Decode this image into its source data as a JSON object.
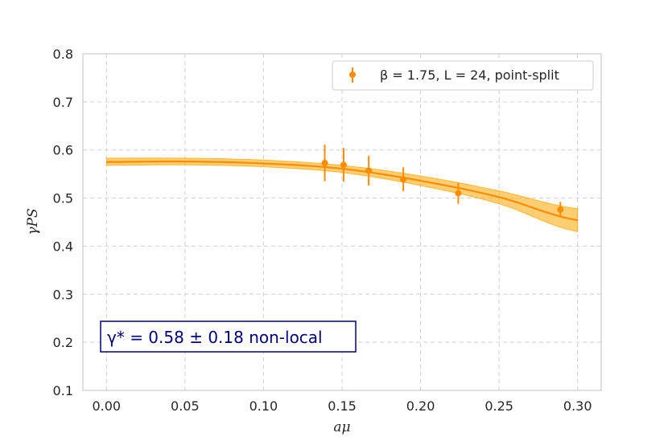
{
  "colors": {
    "series": "#ff8c00",
    "band": "#ffa500",
    "grid": "#d0d0d0",
    "annotation": "#00007f"
  },
  "chart_data": {
    "type": "scatter",
    "xlabel": "aμ",
    "ylabel": "γPS",
    "xlim": [
      -0.015,
      0.315
    ],
    "ylim": [
      0.1,
      0.8
    ],
    "x_ticks": [
      0.0,
      0.05,
      0.1,
      0.15,
      0.2,
      0.25,
      0.3
    ],
    "x_tick_labels": [
      "0.00",
      "0.05",
      "0.10",
      "0.15",
      "0.20",
      "0.25",
      "0.30"
    ],
    "y_ticks": [
      0.1,
      0.2,
      0.3,
      0.4,
      0.5,
      0.6,
      0.7,
      0.8
    ],
    "y_tick_labels": [
      "0.1",
      "0.2",
      "0.3",
      "0.4",
      "0.5",
      "0.6",
      "0.7",
      "0.8"
    ],
    "grid": true,
    "legend": {
      "placement": "top-right",
      "entries": [
        "β = 1.75, L = 24, point-split"
      ]
    },
    "series": [
      {
        "name": "β = 1.75, L = 24, point-split",
        "points": [
          {
            "x": 0.139,
            "y": 0.573,
            "yerr": 0.038
          },
          {
            "x": 0.151,
            "y": 0.569,
            "yerr": 0.035
          },
          {
            "x": 0.167,
            "y": 0.557,
            "yerr": 0.031
          },
          {
            "x": 0.189,
            "y": 0.539,
            "yerr": 0.025
          },
          {
            "x": 0.224,
            "y": 0.51,
            "yerr": 0.022
          },
          {
            "x": 0.289,
            "y": 0.476,
            "yerr": 0.016
          }
        ]
      }
    ],
    "fit": {
      "x": [
        0.0,
        0.05,
        0.1,
        0.15,
        0.2,
        0.25,
        0.3
      ],
      "y": [
        0.575,
        0.576,
        0.572,
        0.561,
        0.536,
        0.502,
        0.454
      ],
      "lower": [
        0.568,
        0.569,
        0.565,
        0.553,
        0.526,
        0.488,
        0.43
      ],
      "upper": [
        0.583,
        0.583,
        0.579,
        0.568,
        0.546,
        0.515,
        0.478
      ]
    },
    "annotation": "γ* = 0.58 ± 0.18 non-local"
  }
}
